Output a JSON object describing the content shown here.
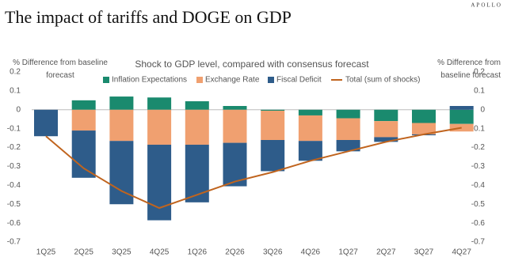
{
  "chart_data": {
    "type": "bar",
    "stacked": true,
    "title": "The impact of tariffs and DOGE on GDP",
    "brand": "APOLLO",
    "subtitle": "Shock to GDP level, compared with consensus forecast",
    "ylabel": "% Difference from baseline forecast",
    "y2label": "% Difference from baseline forecast",
    "categories": [
      "1Q25",
      "2Q25",
      "3Q25",
      "4Q25",
      "1Q26",
      "2Q26",
      "3Q26",
      "4Q26",
      "1Q27",
      "2Q27",
      "3Q27",
      "4Q27"
    ],
    "series": [
      {
        "name": "Inflation Expectations",
        "color": "#1a8a6e",
        "values": [
          0,
          0.05,
          0.07,
          0.065,
          0.045,
          0.02,
          -0.005,
          -0.03,
          -0.045,
          -0.06,
          -0.07,
          -0.075
        ]
      },
      {
        "name": "Exchange Rate",
        "color": "#f0a070",
        "values": [
          0,
          -0.11,
          -0.165,
          -0.185,
          -0.185,
          -0.175,
          -0.155,
          -0.135,
          -0.115,
          -0.085,
          -0.06,
          -0.04
        ]
      },
      {
        "name": "Fiscal Deficit",
        "color": "#2e5c8a",
        "values": [
          -0.14,
          -0.25,
          -0.335,
          -0.4,
          -0.305,
          -0.23,
          -0.165,
          -0.105,
          -0.06,
          -0.025,
          -0.005,
          0.02
        ]
      },
      {
        "name": "Total (sum of shocks)",
        "color": "#c0641e",
        "type": "line",
        "values": [
          -0.14,
          -0.31,
          -0.43,
          -0.52,
          -0.45,
          -0.38,
          -0.33,
          -0.27,
          -0.22,
          -0.17,
          -0.13,
          -0.095
        ]
      }
    ],
    "ylim": [
      -0.7,
      0.2
    ],
    "yticks": [
      0.2,
      0.1,
      0,
      -0.1,
      -0.2,
      -0.3,
      -0.4,
      -0.5,
      -0.6,
      -0.7
    ],
    "y2lim": [
      -0.7,
      0.2
    ],
    "y2ticks": [
      0.2,
      0.1,
      0,
      -0.1,
      -0.2,
      -0.3,
      -0.4,
      -0.5,
      -0.6,
      -0.7
    ]
  }
}
